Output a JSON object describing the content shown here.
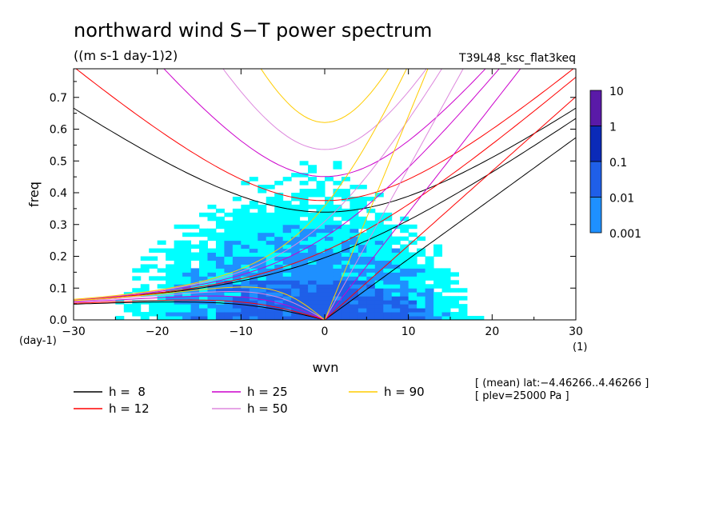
{
  "chart_data": {
    "type": "heatmap",
    "title": "northward wind S−T power spectrum",
    "units": "((m s-1 day-1)2)",
    "run_label": "T39L48_ksc_flat3keq",
    "xlabel": "wvn",
    "ylabel": "freq",
    "x_unit": "(1)",
    "y_unit": "(day-1)",
    "xlim": [
      -30,
      30
    ],
    "ylim": [
      0,
      0.79
    ],
    "x_ticks": [
      -30,
      -20,
      -10,
      0,
      10,
      20,
      30
    ],
    "x_tick_labels": [
      "−30",
      "−20",
      "−10",
      "0",
      "10",
      "20",
      "30"
    ],
    "y_ticks": [
      0,
      0.1,
      0.2,
      0.3,
      0.4,
      0.5,
      0.6,
      0.7
    ],
    "y_tick_labels": [
      "0.0",
      "0.1",
      "0.2",
      "0.3",
      "0.4",
      "0.5",
      "0.6",
      "0.7"
    ],
    "colorbar": {
      "levels": [
        "10",
        "1",
        "0.1",
        "0.01",
        "0.001"
      ],
      "colors": [
        "#5a1aa8",
        "#0b2ab8",
        "#1f5fe8",
        "#1e90ff",
        "#00ffff"
      ]
    },
    "power_regions": [
      {
        "level": "0.001",
        "x": [
          -29,
          20
        ],
        "y": [
          0.0,
          0.48
        ],
        "note": "cyan background"
      },
      {
        "level": "0.01",
        "x": [
          -22,
          14
        ],
        "y": [
          0.0,
          0.3
        ]
      },
      {
        "level": "0.1",
        "x": [
          -10,
          8
        ],
        "y": [
          0.0,
          0.12
        ]
      }
    ],
    "dispersion_curves": [
      {
        "h": 8,
        "color": "#000000"
      },
      {
        "h": 12,
        "color": "#ff0000"
      },
      {
        "h": 25,
        "color": "#cc00cc"
      },
      {
        "h": 50,
        "color": "#dd88dd"
      },
      {
        "h": 90,
        "color": "#ffcc00"
      }
    ],
    "legend": [
      {
        "label": "h =  8",
        "color": "#000000"
      },
      {
        "label": "h = 25",
        "color": "#cc00cc"
      },
      {
        "label": "h = 90",
        "color": "#ffcc00"
      },
      {
        "label": "h = 12",
        "color": "#ff0000"
      },
      {
        "label": "h = 50",
        "color": "#dd88dd"
      }
    ],
    "annotations": [
      "[ (mean) lat:−4.46266..4.46266 ]",
      "[ plev=25000 Pa ]"
    ]
  }
}
